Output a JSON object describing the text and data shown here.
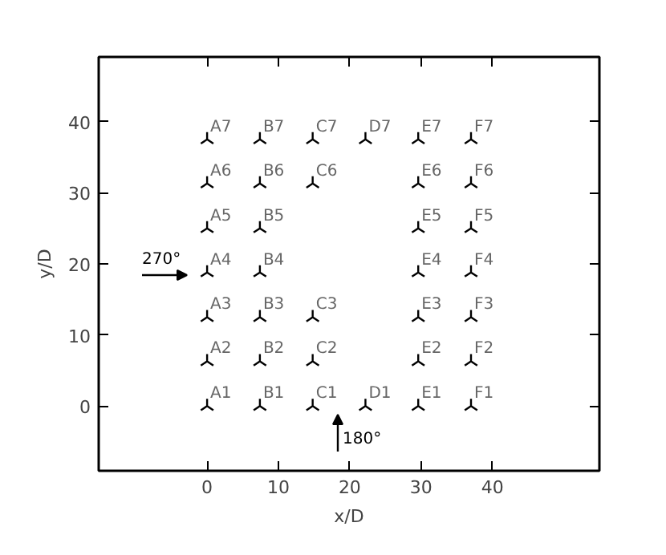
{
  "chart_data": {
    "type": "scatter",
    "xlabel": "x/D",
    "ylabel": "y/D",
    "xlim": [
      -15.2,
      55
    ],
    "ylim": [
      -9.1,
      49.1
    ],
    "xticks": [
      0,
      10,
      20,
      30,
      40
    ],
    "yticks": [
      0,
      10,
      20,
      30,
      40
    ],
    "grid": false,
    "marker": "cross",
    "series": [
      {
        "color": "#000000",
        "x": [
          0,
          0,
          0,
          0,
          0,
          0,
          0,
          7.4,
          7.4,
          7.4,
          7.4,
          7.4,
          7.4,
          7.4,
          14.8,
          14.8,
          14.8,
          14.8,
          14.8,
          22.2,
          22.2,
          29.6,
          29.6,
          29.6,
          29.6,
          29.6,
          29.6,
          29.6,
          37,
          37,
          37,
          37,
          37,
          37,
          37
        ],
        "values": [
          0,
          6.3,
          12.5,
          18.8,
          25,
          31.3,
          37.5,
          0,
          6.3,
          12.5,
          18.8,
          25,
          31.3,
          37.5,
          0,
          6.3,
          12.5,
          31.3,
          37.5,
          0,
          37.5,
          0,
          6.3,
          12.5,
          18.8,
          25,
          31.3,
          37.5,
          0,
          6.3,
          12.5,
          18.8,
          25,
          31.3,
          37.5
        ],
        "value_labels": [
          "A1",
          "A2",
          "A3",
          "A4",
          "A5",
          "A6",
          "A7",
          "B1",
          "B2",
          "B3",
          "B4",
          "B5",
          "B6",
          "B7",
          "C1",
          "C2",
          "C3",
          "C6",
          "C7",
          "D1",
          "D7",
          "E1",
          "E2",
          "E3",
          "E4",
          "E5",
          "E6",
          "E7",
          "F1",
          "F2",
          "F3",
          "F4",
          "F5",
          "F6",
          "F7"
        ]
      }
    ],
    "annotations": [
      "270°",
      "180°"
    ]
  }
}
